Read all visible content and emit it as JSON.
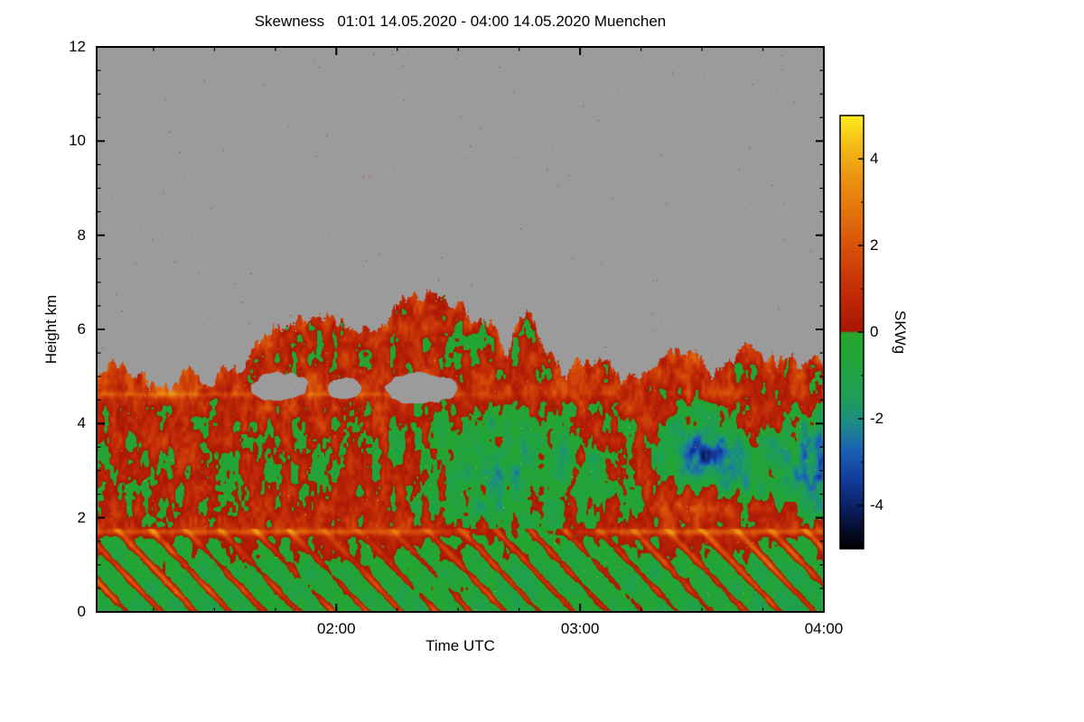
{
  "figure": {
    "background": "#ffffff",
    "text_color": "#000000",
    "frame_color": "#000000"
  },
  "chart_data": {
    "type": "heatmap",
    "variable": "Skewness",
    "site": "Muenchen",
    "time_span": "01:01 14.05.2020 - 04:00 14.05.2020",
    "title": "Skewness   01:01 14.05.2020 - 04:00 14.05.2020 Muenchen",
    "xlabel": "Time UTC",
    "ylabel": "Height km",
    "x_range_minutes": [
      61,
      240
    ],
    "x_range_labels": [
      "01:01",
      "04:00"
    ],
    "x_ticks": [
      {
        "minutes": 120,
        "label": "02:00"
      },
      {
        "minutes": 180,
        "label": "03:00"
      },
      {
        "minutes": 240,
        "label": "04:00"
      }
    ],
    "x_minor_tick_minutes": 15,
    "y_range_km": [
      0,
      12
    ],
    "y_ticks": [
      0,
      2,
      4,
      6,
      8,
      10,
      12
    ],
    "y_minor_tick_km": 0.5,
    "colorbar": {
      "label": "SKWg",
      "range": [
        -5,
        5
      ],
      "ticks": [
        4,
        2,
        0,
        -2,
        -4
      ],
      "minor_ticks": [
        3,
        1,
        -1,
        -3
      ],
      "stops": [
        [
          -5.0,
          "#000000"
        ],
        [
          -4.2,
          "#0a1a52"
        ],
        [
          -3.4,
          "#123c9e"
        ],
        [
          -2.7,
          "#1b63b4"
        ],
        [
          -2.1,
          "#1b8c84"
        ],
        [
          -1.5,
          "#1f9e56"
        ],
        [
          -0.6,
          "#22a438"
        ],
        [
          -0.02,
          "#25a62e"
        ],
        [
          0.02,
          "#a81605"
        ],
        [
          0.9,
          "#c22b07"
        ],
        [
          1.8,
          "#d44b09"
        ],
        [
          2.7,
          "#e2700c"
        ],
        [
          3.6,
          "#ec9510"
        ],
        [
          4.4,
          "#f5c117"
        ],
        [
          5.0,
          "#ffee1e"
        ]
      ]
    },
    "no_data_color": "#9b9b9b",
    "grid": {
      "t_minutes": [
        60,
        75,
        90,
        105,
        120,
        135,
        150,
        165,
        180,
        195,
        210,
        225,
        240
      ],
      "heights_km": [
        0,
        0.8,
        1.5,
        1.8,
        2.2,
        2.8,
        3.4,
        4.0,
        4.5,
        4.8,
        5.2,
        5.8,
        6.5,
        7.5
      ],
      "values": [
        [
          -0.9,
          -0.8,
          -0.9,
          -0.8,
          -0.8,
          -0.9,
          -0.7,
          -0.9,
          -0.8,
          -0.9,
          -0.8,
          -0.9,
          -0.8
        ],
        [
          -0.8,
          -0.7,
          -0.8,
          -0.7,
          -0.5,
          -0.5,
          -0.6,
          -0.8,
          -0.7,
          -0.8,
          -0.6,
          -0.7,
          -0.7
        ],
        [
          -0.2,
          -0.3,
          -0.2,
          0.0,
          0.2,
          0.3,
          0.1,
          -0.3,
          -0.3,
          0.0,
          0.2,
          0.0,
          -0.1
        ],
        [
          0.7,
          0.5,
          0.4,
          0.5,
          0.6,
          0.7,
          0.5,
          -0.5,
          0.1,
          0.6,
          0.7,
          0.7,
          0.6
        ],
        [
          0.4,
          0.2,
          0.3,
          0.4,
          0.5,
          0.6,
          -0.9,
          -1.0,
          -0.2,
          0.5,
          1.6,
          0.6,
          -1.6
        ],
        [
          0.3,
          0.2,
          0.3,
          0.2,
          0.3,
          0.1,
          -0.6,
          -1.4,
          -0.4,
          0.3,
          -1.0,
          -1.2,
          -2.4
        ],
        [
          0.3,
          0.4,
          0.2,
          0.3,
          0.2,
          0.0,
          -0.8,
          -1.2,
          -0.3,
          0.4,
          -3.6,
          -0.6,
          -2.2
        ],
        [
          0.5,
          0.4,
          0.5,
          0.4,
          0.4,
          0.3,
          -0.3,
          -0.6,
          0.2,
          0.5,
          -1.2,
          0.4,
          -1.4
        ],
        [
          0.9,
          0.8,
          0.7,
          0.9,
          0.8,
          0.9,
          0.6,
          0.5,
          0.7,
          0.8,
          0.4,
          0.7,
          0.5
        ],
        [
          1.1,
          1.0,
          0.9,
          1.0,
          0.9,
          1.0,
          0.8,
          0.9,
          0.9,
          0.8,
          0.7,
          0.8,
          0.7
        ],
        [
          0.6,
          0.5,
          0.5,
          0.6,
          0.5,
          0.6,
          0.5,
          0.5,
          0.6,
          0.5,
          0.5,
          0.5,
          0.4
        ],
        [
          0.4,
          0.4,
          0.3,
          0.4,
          0.4,
          0.5,
          0.4,
          0.4,
          0.4,
          0.4,
          0.4,
          0.4,
          0.4
        ],
        [
          0.3,
          0.3,
          0.3,
          0.3,
          0.4,
          0.4,
          0.3,
          0.3,
          0.3,
          0.3,
          0.3,
          0.3,
          0.3
        ],
        [
          0.3,
          0.3,
          0.3,
          0.3,
          0.3,
          0.3,
          0.3,
          0.3,
          0.3,
          0.3,
          0.3,
          0.3,
          0.3
        ]
      ]
    },
    "cloud_top_km": {
      "t_minutes": [
        60,
        70,
        80,
        90,
        96,
        102,
        108,
        114,
        120,
        126,
        132,
        138,
        143,
        148,
        153,
        158,
        162,
        165,
        168,
        172,
        175,
        180,
        188,
        196,
        204,
        212,
        220,
        228,
        236,
        240
      ],
      "top_km": [
        5.15,
        5.05,
        4.95,
        4.92,
        5.1,
        5.7,
        6.05,
        6.15,
        6.2,
        6.15,
        6.35,
        6.55,
        6.7,
        6.6,
        6.45,
        6.25,
        5.35,
        6.15,
        6.35,
        5.2,
        5.1,
        5.15,
        5.2,
        5.15,
        5.45,
        5.3,
        5.5,
        5.35,
        5.45,
        5.3
      ]
    },
    "cloud_holes": [
      {
        "t": 106,
        "h": 4.78,
        "rt": 7,
        "rh": 0.3
      },
      {
        "t": 122,
        "h": 4.75,
        "rt": 4.5,
        "rh": 0.22
      },
      {
        "t": 141,
        "h": 4.75,
        "rt": 9,
        "rh": 0.32
      }
    ],
    "shear_lines": [
      {
        "h_km": 1.7,
        "sigma_km": 0.07,
        "t_minutes": [
          60,
          115,
          145,
          158,
          172,
          190,
          240
        ],
        "strength": [
          1.5,
          1.6,
          1.3,
          0.2,
          0.3,
          1.6,
          1.5
        ]
      },
      {
        "h_km": 4.62,
        "sigma_km": 0.06,
        "t_minutes": [
          60,
          140,
          155,
          165,
          240
        ],
        "strength": [
          1.0,
          1.0,
          0.6,
          0.15,
          0.15
        ]
      }
    ],
    "texture": {
      "style": "speckled turbulence field",
      "diagonal_fall_streaks_below_km": 1.75,
      "gray_region_speckles": "sparse colored dots"
    }
  }
}
